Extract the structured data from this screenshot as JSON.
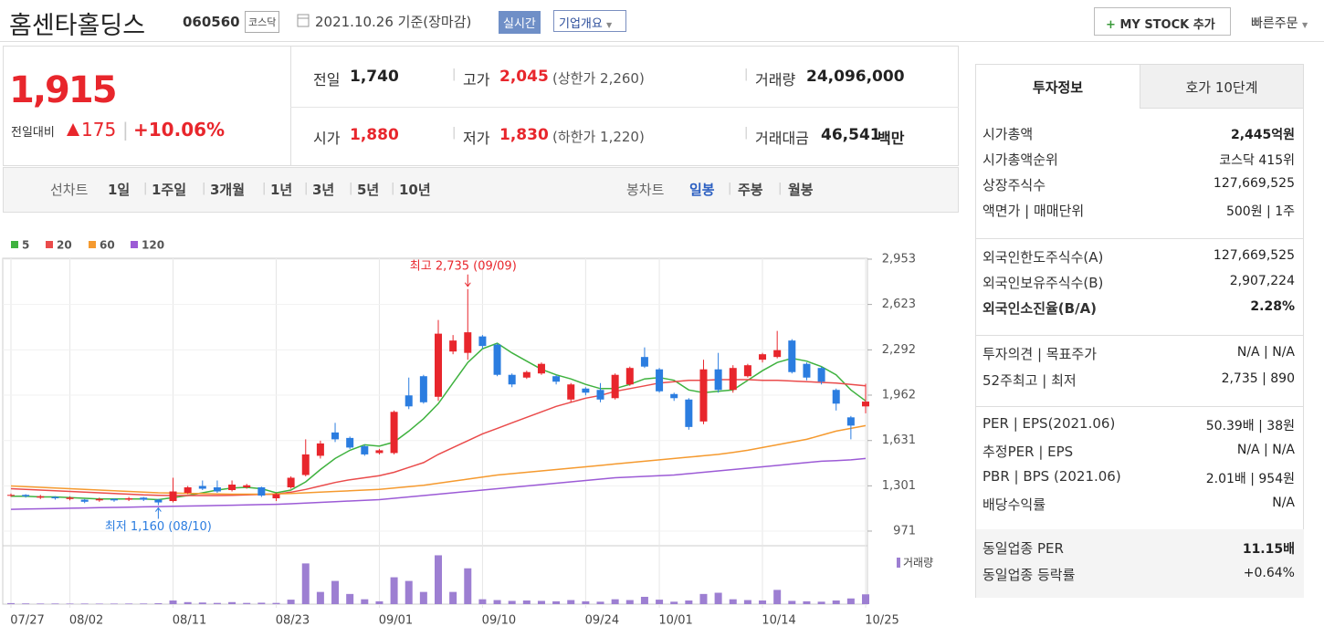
{
  "header": {
    "title": "홈센타홀딩스",
    "code": "060560",
    "market": "코스닥",
    "date": "2021.10.26 기준(장마감)",
    "realtime": "실시간",
    "company_info": "기업개요",
    "my_stock": "MY STOCK 추가",
    "quick_order": "빠른주문"
  },
  "quote": {
    "price": "1,915",
    "change_label": "전일대비",
    "change": "175",
    "change_pct": "+10.06%",
    "items": [
      {
        "label": "전일",
        "value": "1,740"
      },
      {
        "label": "고가",
        "value": "2,045",
        "note": "(상한가 2,260)"
      },
      {
        "label": "거래량",
        "value": "24,096,000"
      },
      {
        "label": "시가",
        "value": "1,880"
      },
      {
        "label": "저가",
        "value": "1,830",
        "note": "(하한가 1,220)"
      },
      {
        "label": "거래대금",
        "value": "46,541",
        "unit": "백만"
      }
    ]
  },
  "tabs": {
    "line_label": "선차트",
    "line_items": [
      "1일",
      "1주일",
      "3개월",
      "1년",
      "3년",
      "5년",
      "10년"
    ],
    "candle_label": "봉차트",
    "candle_items": [
      "일봉",
      "주봉",
      "월봉"
    ],
    "selected": "일봉"
  },
  "info": {
    "tabs": [
      "투자정보",
      "호가 10단계"
    ],
    "sections": [
      {
        "rows": [
          {
            "label": "시가총액",
            "value": "2,445억원"
          },
          {
            "label": "시가총액순위",
            "value": "코스닥 415위"
          },
          {
            "label": "상장주식수",
            "value": "127,669,525"
          },
          {
            "label": "액면가 | 매매단위",
            "value": "500원 | 1주"
          }
        ]
      },
      {
        "rows": [
          {
            "label": "외국인한도주식수(A)",
            "value": "127,669,525"
          },
          {
            "label": "외국인보유주식수(B)",
            "value": "2,907,224"
          },
          {
            "label": "외국인소진율(B/A)",
            "value": "2.28%"
          }
        ]
      },
      {
        "rows": [
          {
            "label": "투자의견 | 목표주가",
            "value": "N/A | N/A"
          },
          {
            "label": "52주최고 | 최저",
            "value": "2,735 | 890"
          }
        ]
      },
      {
        "rows": [
          {
            "label": "PER | EPS(2021.06)",
            "value": "50.39배 | 38원"
          },
          {
            "label": "추정PER | EPS",
            "value": "N/A | N/A"
          },
          {
            "label": "PBR | BPS (2021.06)",
            "value": "2.01배 | 954원"
          },
          {
            "label": "배당수익률",
            "value": "N/A"
          }
        ]
      },
      {
        "rows": [
          {
            "label": "동일업종 PER",
            "value": "11.15배"
          },
          {
            "label": "동일업종 등락률",
            "value": "+0.64%"
          }
        ]
      }
    ]
  },
  "chart_data": [
    {
      "type": "candlestick",
      "up_color": "#e8262c",
      "down_color": "#2b7de0",
      "annotations": [
        "최고 2,735 (09/09)",
        "최저 1,160 (08/10)"
      ],
      "categories": [
        "07/27",
        null,
        null,
        null,
        "08/02",
        null,
        null,
        null,
        null,
        null,
        null,
        "08/11",
        null,
        null,
        null,
        null,
        null,
        null,
        "08/23",
        null,
        null,
        null,
        null,
        null,
        null,
        "09/01",
        null,
        null,
        null,
        null,
        null,
        null,
        "09/10",
        null,
        null,
        null,
        null,
        null,
        null,
        "09/24",
        null,
        null,
        null,
        null,
        "10/01",
        null,
        null,
        null,
        null,
        null,
        null,
        "10/14",
        null,
        null,
        null,
        null,
        null,
        null,
        "10/25"
      ],
      "open": [
        1230,
        1235,
        1215,
        1220,
        1205,
        1200,
        1195,
        1205,
        1200,
        1215,
        1200,
        1190,
        1250,
        1300,
        1290,
        1270,
        1290,
        1290,
        1210,
        1290,
        1380,
        1520,
        1690,
        1650,
        1590,
        1540,
        1540,
        1960,
        2100,
        1950,
        2280,
        2270,
        2390,
        2330,
        2110,
        2090,
        2120,
        2100,
        1930,
        2010,
        2000,
        1940,
        2040,
        2240,
        2150,
        1970,
        1930,
        1770,
        2150,
        2000,
        2100,
        2220,
        2240,
        2360,
        2190,
        2160,
        2000,
        1800,
        1880
      ],
      "high": [
        1245,
        1240,
        1235,
        1225,
        1225,
        1205,
        1215,
        1210,
        1220,
        1220,
        1205,
        1360,
        1300,
        1340,
        1340,
        1340,
        1315,
        1295,
        1250,
        1370,
        1640,
        1630,
        1760,
        1660,
        1600,
        1570,
        1850,
        2090,
        2110,
        2510,
        2400,
        2735,
        2400,
        2340,
        2120,
        2140,
        2200,
        2110,
        2050,
        2020,
        2050,
        2120,
        2170,
        2310,
        2160,
        1980,
        1940,
        2220,
        2270,
        2180,
        2190,
        2270,
        2430,
        2370,
        2200,
        2170,
        2010,
        1810,
        2045
      ],
      "low": [
        1220,
        1215,
        1205,
        1200,
        1195,
        1175,
        1185,
        1185,
        1190,
        1190,
        1160,
        1180,
        1240,
        1270,
        1250,
        1260,
        1280,
        1220,
        1190,
        1280,
        1370,
        1500,
        1620,
        1570,
        1520,
        1530,
        1530,
        1860,
        1900,
        1920,
        2260,
        2220,
        2300,
        2100,
        2020,
        2080,
        2110,
        2040,
        1910,
        1960,
        1910,
        1930,
        2030,
        2160,
        1980,
        1920,
        1710,
        1750,
        1980,
        1980,
        2090,
        2200,
        2230,
        2120,
        2070,
        2040,
        1850,
        1640,
        1830
      ],
      "close": [
        1235,
        1225,
        1225,
        1210,
        1215,
        1185,
        1205,
        1195,
        1210,
        1200,
        1180,
        1260,
        1290,
        1280,
        1260,
        1310,
        1305,
        1230,
        1240,
        1360,
        1530,
        1610,
        1640,
        1580,
        1530,
        1560,
        1840,
        1880,
        1910,
        2410,
        2360,
        2420,
        2320,
        2110,
        2040,
        2130,
        2190,
        2060,
        2040,
        1980,
        1930,
        2110,
        2160,
        2170,
        1990,
        1940,
        1730,
        2150,
        2000,
        2160,
        2180,
        2260,
        2290,
        2130,
        2090,
        2060,
        1900,
        1740,
        1915
      ],
      "series": [
        {
          "name": "5",
          "color": "#3fb23f",
          "values": [
            1225,
            1225,
            1220,
            1220,
            1215,
            1210,
            1205,
            1205,
            1205,
            1205,
            1200,
            1215,
            1230,
            1250,
            1270,
            1285,
            1290,
            1280,
            1250,
            1270,
            1330,
            1420,
            1500,
            1560,
            1600,
            1590,
            1620,
            1700,
            1790,
            1900,
            2050,
            2200,
            2300,
            2340,
            2270,
            2210,
            2150,
            2110,
            2080,
            2040,
            2010,
            2010,
            2040,
            2080,
            2090,
            2070,
            2000,
            1980,
            1990,
            2000,
            2070,
            2140,
            2200,
            2230,
            2210,
            2170,
            2110,
            2000,
            1920
          ]
        },
        {
          "name": "20",
          "color": "#ea4b4b",
          "values": [
            1280,
            1275,
            1270,
            1265,
            1260,
            1255,
            1250,
            1245,
            1240,
            1235,
            1232,
            1230,
            1230,
            1230,
            1230,
            1232,
            1235,
            1238,
            1240,
            1255,
            1275,
            1300,
            1325,
            1345,
            1360,
            1375,
            1400,
            1435,
            1470,
            1530,
            1580,
            1630,
            1680,
            1720,
            1760,
            1800,
            1840,
            1880,
            1910,
            1940,
            1960,
            1990,
            2010,
            2030,
            2050,
            2060,
            2070,
            2070,
            2075,
            2075,
            2075,
            2070,
            2070,
            2065,
            2060,
            2055,
            2050,
            2040,
            2030
          ]
        },
        {
          "name": "60",
          "color": "#f59a2f",
          "values": [
            1300,
            1295,
            1290,
            1285,
            1280,
            1275,
            1270,
            1265,
            1260,
            1255,
            1250,
            1248,
            1246,
            1244,
            1242,
            1240,
            1240,
            1240,
            1242,
            1245,
            1250,
            1255,
            1260,
            1265,
            1270,
            1275,
            1285,
            1295,
            1305,
            1320,
            1335,
            1350,
            1365,
            1380,
            1390,
            1400,
            1410,
            1420,
            1430,
            1440,
            1450,
            1460,
            1470,
            1480,
            1490,
            1500,
            1510,
            1520,
            1530,
            1545,
            1560,
            1580,
            1600,
            1620,
            1640,
            1670,
            1700,
            1720,
            1740
          ]
        },
        {
          "name": "120",
          "color": "#9c5bd6",
          "values": [
            1130,
            1132,
            1134,
            1136,
            1138,
            1140,
            1142,
            1144,
            1146,
            1148,
            1150,
            1152,
            1154,
            1156,
            1158,
            1160,
            1162,
            1164,
            1166,
            1170,
            1175,
            1180,
            1185,
            1190,
            1195,
            1200,
            1210,
            1220,
            1230,
            1240,
            1250,
            1260,
            1270,
            1280,
            1290,
            1300,
            1310,
            1320,
            1330,
            1340,
            1350,
            1360,
            1365,
            1370,
            1375,
            1380,
            1390,
            1400,
            1410,
            1420,
            1430,
            1440,
            1450,
            1460,
            1470,
            1480,
            1485,
            1490,
            1500
          ]
        }
      ],
      "ylim": [
        871,
        3046
      ],
      "yticks": [
        {
          "value": 2953,
          "label": "2,953"
        },
        {
          "value": 2623,
          "label": "2,623"
        },
        {
          "value": 2292,
          "label": "2,292"
        },
        {
          "value": 1962,
          "label": "1,962"
        },
        {
          "value": 1631,
          "label": "1,631"
        },
        {
          "value": 1301,
          "label": "1,301"
        },
        {
          "value": 971,
          "label": "971"
        }
      ]
    },
    {
      "type": "bar",
      "name": "거래량",
      "color": "#9d7fd2",
      "ylim": [
        0,
        130000000
      ],
      "values": [
        2500000,
        1800000,
        1500000,
        1600000,
        1400000,
        1500000,
        1300000,
        1400000,
        1500000,
        1600000,
        2200000,
        9000000,
        5000000,
        4000000,
        3000000,
        5000000,
        3000000,
        3500000,
        3000000,
        11000000,
        100000000,
        30000000,
        57000000,
        25000000,
        12000000,
        7000000,
        66000000,
        57000000,
        30000000,
        120000000,
        30000000,
        88000000,
        12000000,
        10000000,
        8000000,
        9000000,
        8000000,
        7000000,
        10000000,
        7000000,
        6000000,
        12000000,
        10000000,
        18000000,
        11000000,
        6000000,
        9000000,
        25000000,
        28000000,
        12000000,
        10000000,
        9000000,
        35000000,
        8000000,
        7000000,
        6000000,
        9000000,
        14000000,
        24096000
      ]
    }
  ]
}
